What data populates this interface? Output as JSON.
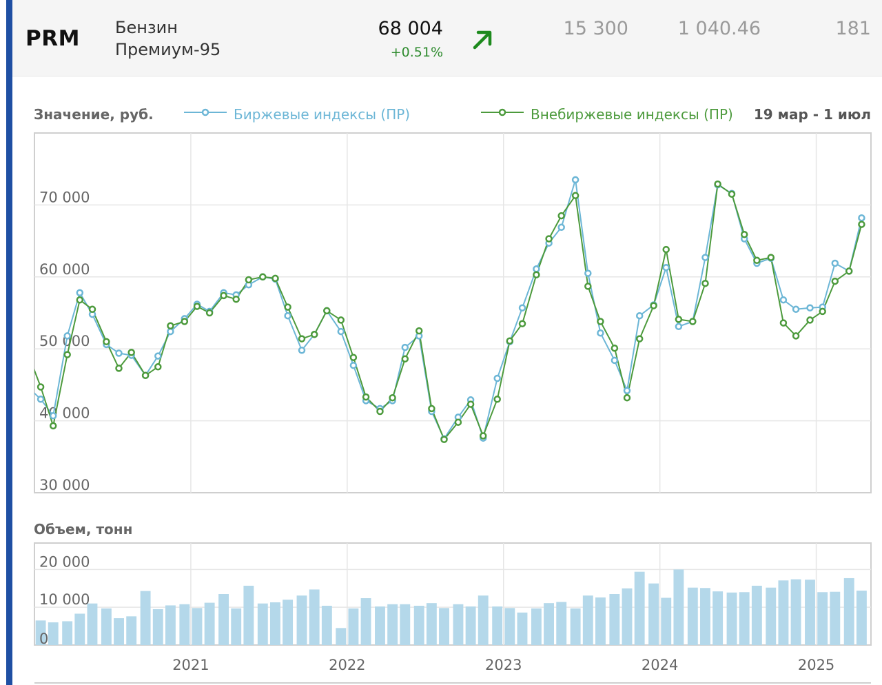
{
  "header": {
    "ticker": "PRM",
    "product_line1": "Бензин",
    "product_line2": "Премиум-95",
    "price": "68 004",
    "change": "+0.51%",
    "trend_icon": "arrow-up-right-icon",
    "stat1": "15 300",
    "stat2": "1 040.46",
    "stat3": "181"
  },
  "colors": {
    "accent": "#1f4fa3",
    "exchange": "#6cb6d6",
    "otc": "#4c9a3c",
    "volume": "#b4d8ea",
    "change_positive": "#2e8b2e"
  },
  "chart_data": [
    {
      "type": "line",
      "ylabel": "Значение, руб.",
      "period": "19 мар - 1 июл",
      "ylim": [
        30000,
        80000
      ],
      "yticks": [
        30000,
        40000,
        50000,
        60000,
        70000
      ],
      "ytick_labels": [
        "30 000",
        "40 000",
        "50 000",
        "60 000",
        "70 000"
      ],
      "xlim": [
        2020.0,
        2025.35
      ],
      "xticks": [
        2021,
        2022,
        2023,
        2024,
        2025
      ],
      "xtick_labels": [
        "2021",
        "2022",
        "2023",
        "2024",
        "2025"
      ],
      "grid": true,
      "legend_position": "top",
      "series": [
        {
          "name": "Биржевые индексы (ПР)",
          "color": "#6cb6d6",
          "points": [
            [
              2020.04,
              43000
            ],
            [
              2020.12,
              40700
            ],
            [
              2020.21,
              51800
            ],
            [
              2020.29,
              57800
            ],
            [
              2020.37,
              54800
            ],
            [
              2020.46,
              50600
            ],
            [
              2020.54,
              49400
            ],
            [
              2020.62,
              49100
            ],
            [
              2020.71,
              46300
            ],
            [
              2020.79,
              49000
            ],
            [
              2020.87,
              52400
            ],
            [
              2020.96,
              54200
            ],
            [
              2021.04,
              56200
            ],
            [
              2021.12,
              55200
            ],
            [
              2021.21,
              57800
            ],
            [
              2021.29,
              57500
            ],
            [
              2021.37,
              58900
            ],
            [
              2021.46,
              60000
            ],
            [
              2021.54,
              59700
            ],
            [
              2021.62,
              54600
            ],
            [
              2021.71,
              49800
            ],
            [
              2021.79,
              52000
            ],
            [
              2021.87,
              55300
            ],
            [
              2021.96,
              52400
            ],
            [
              2022.04,
              47700
            ],
            [
              2022.12,
              42800
            ],
            [
              2022.21,
              41700
            ],
            [
              2022.29,
              42800
            ],
            [
              2022.37,
              50200
            ],
            [
              2022.46,
              51800
            ],
            [
              2022.54,
              41300
            ],
            [
              2022.62,
              37500
            ],
            [
              2022.71,
              40500
            ],
            [
              2022.79,
              42900
            ],
            [
              2022.87,
              37600
            ],
            [
              2022.96,
              45900
            ],
            [
              2023.04,
              51000
            ],
            [
              2023.12,
              55700
            ],
            [
              2023.21,
              61100
            ],
            [
              2023.29,
              64700
            ],
            [
              2023.37,
              66900
            ],
            [
              2023.46,
              73500
            ],
            [
              2023.54,
              60500
            ],
            [
              2023.62,
              52200
            ],
            [
              2023.71,
              48400
            ],
            [
              2023.79,
              44200
            ],
            [
              2023.87,
              54600
            ],
            [
              2023.96,
              56100
            ],
            [
              2024.04,
              61300
            ],
            [
              2024.12,
              53100
            ],
            [
              2024.21,
              53800
            ],
            [
              2024.29,
              62700
            ],
            [
              2024.37,
              72800
            ],
            [
              2024.46,
              71600
            ],
            [
              2024.54,
              65300
            ],
            [
              2024.62,
              61900
            ],
            [
              2024.71,
              62600
            ],
            [
              2024.79,
              56800
            ],
            [
              2024.87,
              55500
            ],
            [
              2024.96,
              55700
            ],
            [
              2025.04,
              55800
            ],
            [
              2025.12,
              61900
            ],
            [
              2025.21,
              60800
            ],
            [
              2025.29,
              68200
            ]
          ]
        },
        {
          "name": "Внебиржевые индексы (ПР)",
          "color": "#4c9a3c",
          "points": [
            [
              2020.04,
              44700
            ],
            [
              2020.12,
              39300
            ],
            [
              2020.21,
              49200
            ],
            [
              2020.29,
              56800
            ],
            [
              2020.37,
              55500
            ],
            [
              2020.46,
              51000
            ],
            [
              2020.54,
              47300
            ],
            [
              2020.62,
              49500
            ],
            [
              2020.71,
              46300
            ],
            [
              2020.79,
              47500
            ],
            [
              2020.87,
              53200
            ],
            [
              2020.96,
              53800
            ],
            [
              2021.04,
              55900
            ],
            [
              2021.12,
              55000
            ],
            [
              2021.21,
              57400
            ],
            [
              2021.29,
              56900
            ],
            [
              2021.37,
              59600
            ],
            [
              2021.46,
              60000
            ],
            [
              2021.54,
              59800
            ],
            [
              2021.62,
              55800
            ],
            [
              2021.71,
              51400
            ],
            [
              2021.79,
              52000
            ],
            [
              2021.87,
              55300
            ],
            [
              2021.96,
              54000
            ],
            [
              2022.04,
              48800
            ],
            [
              2022.12,
              43300
            ],
            [
              2022.21,
              41300
            ],
            [
              2022.29,
              43200
            ],
            [
              2022.37,
              48600
            ],
            [
              2022.46,
              52500
            ],
            [
              2022.54,
              41700
            ],
            [
              2022.62,
              37400
            ],
            [
              2022.71,
              39800
            ],
            [
              2022.79,
              42300
            ],
            [
              2022.87,
              37900
            ],
            [
              2022.96,
              43000
            ],
            [
              2023.04,
              51100
            ],
            [
              2023.12,
              53500
            ],
            [
              2023.21,
              60300
            ],
            [
              2023.29,
              65300
            ],
            [
              2023.37,
              68500
            ],
            [
              2023.46,
              71300
            ],
            [
              2023.54,
              58700
            ],
            [
              2023.62,
              53800
            ],
            [
              2023.71,
              50100
            ],
            [
              2023.79,
              43200
            ],
            [
              2023.87,
              51400
            ],
            [
              2023.96,
              56000
            ],
            [
              2024.04,
              63800
            ],
            [
              2024.12,
              54100
            ],
            [
              2024.21,
              53800
            ],
            [
              2024.29,
              59100
            ],
            [
              2024.37,
              72900
            ],
            [
              2024.46,
              71500
            ],
            [
              2024.54,
              65900
            ],
            [
              2024.62,
              62300
            ],
            [
              2024.71,
              62700
            ],
            [
              2024.79,
              53600
            ],
            [
              2024.87,
              51800
            ],
            [
              2024.96,
              54000
            ],
            [
              2025.04,
              55200
            ],
            [
              2025.12,
              59400
            ],
            [
              2025.21,
              60800
            ],
            [
              2025.29,
              67300
            ]
          ]
        }
      ]
    },
    {
      "type": "bar",
      "ylabel": "Объем, тонн",
      "ylim": [
        0,
        27000
      ],
      "yticks": [
        0,
        10000,
        20000
      ],
      "ytick_labels": [
        "0",
        "10 000",
        "20 000"
      ],
      "xlim": [
        2020.0,
        2025.35
      ],
      "grid": true,
      "color": "#b4d8ea",
      "x": [
        2020.04,
        2020.12,
        2020.21,
        2020.29,
        2020.37,
        2020.46,
        2020.54,
        2020.62,
        2020.71,
        2020.79,
        2020.87,
        2020.96,
        2021.04,
        2021.12,
        2021.21,
        2021.29,
        2021.37,
        2021.46,
        2021.54,
        2021.62,
        2021.71,
        2021.79,
        2021.87,
        2021.96,
        2022.04,
        2022.12,
        2022.21,
        2022.29,
        2022.37,
        2022.46,
        2022.54,
        2022.62,
        2022.71,
        2022.79,
        2022.87,
        2022.96,
        2023.04,
        2023.12,
        2023.21,
        2023.29,
        2023.37,
        2023.46,
        2023.54,
        2023.62,
        2023.71,
        2023.79,
        2023.87,
        2023.96,
        2024.04,
        2024.12,
        2024.21,
        2024.29,
        2024.37,
        2024.46,
        2024.54,
        2024.62,
        2024.71,
        2024.79,
        2024.87,
        2024.96,
        2025.04,
        2025.12,
        2025.21,
        2025.29
      ],
      "values": [
        6500,
        6000,
        6300,
        8300,
        11000,
        9700,
        7100,
        7600,
        14300,
        9500,
        10500,
        10800,
        9800,
        11200,
        13500,
        9700,
        15700,
        11000,
        11300,
        12000,
        13100,
        14700,
        10400,
        4500,
        9700,
        12400,
        10200,
        10800,
        10800,
        10400,
        11100,
        9800,
        10800,
        10200,
        13100,
        10200,
        9800,
        8600,
        9700,
        11100,
        11400,
        9700,
        13100,
        12600,
        13500,
        15000,
        19400,
        16300,
        12500,
        20000,
        15200,
        15100,
        14200,
        13900,
        14000,
        15700,
        15200,
        17100,
        17400,
        17300,
        14000,
        14100,
        17700,
        14400
      ]
    }
  ]
}
